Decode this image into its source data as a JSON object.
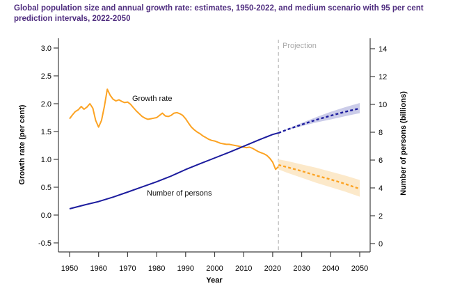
{
  "header": {
    "title": "Global population size and annual growth rate: estimates, 1950-2022, and medium scenario with 95 per cent prediction intervals, 2022-2050"
  },
  "colors": {
    "title_text": "#4f2d7f",
    "growth": "#FCA323",
    "growth_band": "#FCE9CA",
    "population": "#1C1C9E",
    "population_band": "#CBCCE9",
    "divider_line": "#c2c2c2",
    "projection_text": "#a9a9a9",
    "axis": "#3f3f3f"
  },
  "chart_data": {
    "type": "line",
    "x_axis": {
      "label": "Year",
      "ticks": [
        1950,
        1960,
        1970,
        1980,
        1990,
        2000,
        2010,
        2020,
        2030,
        2040,
        2050
      ],
      "range": [
        1946,
        2054
      ]
    },
    "y_axis_left": {
      "label": "Growth rate (per cent)",
      "ticks": [
        "3.0",
        "2.5",
        "2.0",
        "1.5",
        "1.0",
        "0.5",
        "0.0",
        "-0.5"
      ],
      "range": [
        -0.66,
        3.18
      ]
    },
    "y_axis_right": {
      "label": "Number of persons (billions)",
      "ticks": [
        14,
        12,
        10,
        8,
        6,
        4,
        2,
        0
      ],
      "range": [
        -0.6,
        14.75
      ]
    },
    "projection": {
      "divider_year": 2022,
      "label": "Projection"
    },
    "annotations": {
      "growth_rate": "Growth rate",
      "number_of_persons": "Number of persons",
      "projection": "Projection"
    },
    "series": [
      {
        "name": "Growth rate (estimates)",
        "axis": "left",
        "style": "solid",
        "color_key": "growth",
        "x_start": 1950,
        "x_step": 1,
        "values": [
          1.73,
          1.8,
          1.86,
          1.89,
          1.95,
          1.9,
          1.94,
          2.0,
          1.92,
          1.7,
          1.58,
          1.7,
          1.95,
          2.26,
          2.15,
          2.08,
          2.05,
          2.07,
          2.04,
          2.02,
          2.03,
          1.99,
          1.93,
          1.87,
          1.82,
          1.77,
          1.74,
          1.72,
          1.73,
          1.74,
          1.75,
          1.79,
          1.83,
          1.78,
          1.77,
          1.79,
          1.83,
          1.84,
          1.82,
          1.79,
          1.73,
          1.65,
          1.58,
          1.53,
          1.49,
          1.46,
          1.42,
          1.39,
          1.36,
          1.34,
          1.33,
          1.31,
          1.29,
          1.28,
          1.27,
          1.27,
          1.26,
          1.25,
          1.24,
          1.23,
          1.22,
          1.21,
          1.22,
          1.2,
          1.17,
          1.14,
          1.12,
          1.1,
          1.07,
          1.02,
          0.95,
          0.82,
          0.87
        ]
      },
      {
        "name": "Growth rate (medium scenario projection)",
        "axis": "left",
        "style": "dashed",
        "color_key": "growth",
        "band_color_key": "growth_band",
        "x": [
          2022,
          2025,
          2030,
          2035,
          2040,
          2045,
          2050
        ],
        "values": [
          0.9,
          0.86,
          0.79,
          0.71,
          0.64,
          0.56,
          0.47
        ],
        "band": {
          "low": [
            0.82,
            0.76,
            0.67,
            0.58,
            0.5,
            0.42,
            0.33
          ],
          "high": [
            1.0,
            0.97,
            0.91,
            0.85,
            0.78,
            0.71,
            0.63
          ]
        }
      },
      {
        "name": "Number of persons (estimates)",
        "axis": "right",
        "style": "solid",
        "color_key": "population",
        "x": [
          1950,
          1955,
          1960,
          1965,
          1970,
          1975,
          1980,
          1985,
          1990,
          1995,
          2000,
          2005,
          2010,
          2015,
          2020,
          2022
        ],
        "values": [
          2.5,
          2.77,
          3.02,
          3.34,
          3.7,
          4.07,
          4.44,
          4.85,
          5.32,
          5.74,
          6.15,
          6.56,
          6.99,
          7.43,
          7.84,
          7.95
        ]
      },
      {
        "name": "Number of persons (medium scenario projection)",
        "axis": "right",
        "style": "dashed",
        "color_key": "population",
        "band_color_key": "population_band",
        "x": [
          2022,
          2025,
          2030,
          2035,
          2040,
          2045,
          2050
        ],
        "values": [
          7.95,
          8.19,
          8.55,
          8.89,
          9.19,
          9.47,
          9.71
        ],
        "band": {
          "low": [
            7.95,
            8.15,
            8.44,
            8.7,
            8.92,
            9.15,
            9.37
          ],
          "high": [
            7.95,
            8.23,
            8.67,
            9.08,
            9.47,
            9.8,
            10.1
          ]
        }
      }
    ]
  }
}
